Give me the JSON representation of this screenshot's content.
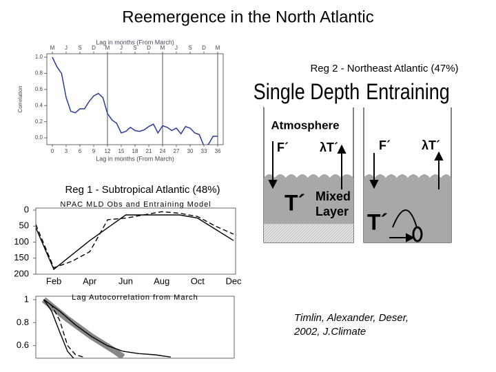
{
  "title": "Reemergence in the North Atlantic",
  "reg2": "Reg 2 - Northeast Atlantic (47%)",
  "reg1": "Reg 1 - Subtropical Atlantic (48%)",
  "citation": [
    "Timlin, Alexander, Deser,",
    "2002, J.Climate"
  ],
  "diagram": {
    "left_title": "Single Depth",
    "right_title": "Entraining",
    "atmosphere": "Atmosphere",
    "forcing": "F´",
    "damping": "λT´",
    "forcing_right": "F´",
    "damping_right": "λT´",
    "temp": "T´",
    "mixed_layer": [
      "Mixed",
      "Layer"
    ],
    "temp_right": "T´"
  },
  "chart_data": [
    {
      "type": "line",
      "title": "Lag in months (From March)",
      "xlabel": "Lag in months (From March)",
      "ylabel": "Correlation",
      "top_labels": [
        "M",
        "J",
        "S",
        "D",
        "M",
        "J",
        "S",
        "D",
        "M",
        "J",
        "S",
        "D",
        "M"
      ],
      "x": [
        0,
        1,
        2,
        3,
        4,
        5,
        6,
        7,
        8,
        9,
        10,
        11,
        12,
        13,
        14,
        15,
        16,
        17,
        18,
        19,
        20,
        21,
        22,
        23,
        24,
        25,
        26,
        27,
        28,
        29,
        30,
        31,
        32,
        33,
        34,
        35,
        36
      ],
      "series": [
        {
          "color": "#2b3a9c",
          "values": [
            1.0,
            0.88,
            0.8,
            0.5,
            0.33,
            0.31,
            0.36,
            0.36,
            0.45,
            0.52,
            0.55,
            0.5,
            0.3,
            0.22,
            0.18,
            0.06,
            0.08,
            0.13,
            0.09,
            0.08,
            0.1,
            0.14,
            0.17,
            0.06,
            0.15,
            0.13,
            0.09,
            0.12,
            0.05,
            0.14,
            0.12,
            0.06,
            0.04,
            -0.1,
            -0.08,
            0.02,
            0.02
          ]
        }
      ],
      "xlim": [
        -1.2,
        37.2
      ],
      "xticks": [
        0,
        3,
        6,
        9,
        12,
        15,
        18,
        21,
        24,
        27,
        30,
        33,
        36
      ],
      "ylim": [
        -0.085,
        1.043
      ],
      "yticks": [
        {
          "value": 0,
          "label": "0.0"
        },
        0.2,
        0.4,
        0.6,
        0.8,
        {
          "value": 1,
          "label": "1.0"
        }
      ],
      "vlines": [
        12,
        24,
        36
      ]
    },
    {
      "type": "line",
      "title": "NPAC MLD Obs and Entraining Model",
      "categories": [
        null,
        "Feb",
        null,
        "Apr",
        null,
        "Jun",
        null,
        "Aug",
        null,
        "Oct",
        null,
        "Dec"
      ],
      "series": [
        {
          "color": "#000000",
          "dash": false,
          "values": [
            55,
            185,
            140,
            95,
            55,
            15,
            15,
            15,
            15,
            25,
            60,
            95
          ]
        },
        {
          "color": "#000000",
          "dash": true,
          "values": [
            45,
            180,
            160,
            130,
            30,
            25,
            15,
            5,
            10,
            20,
            50,
            75
          ]
        }
      ],
      "ylim": [
        0,
        200
      ],
      "yticks": [
        0,
        50,
        100,
        150,
        200
      ],
      "inverted": true
    },
    {
      "type": "line",
      "title": "Lag Autocorrelation from March",
      "series": [
        {
          "color": "#888888",
          "style": "band",
          "x": [
            0,
            3,
            6,
            9,
            10
          ],
          "values": [
            1,
            0.83,
            0.68,
            0.55,
            0.5
          ]
        },
        {
          "color": "#000000",
          "dash": false,
          "x": [
            0,
            1,
            2,
            3,
            4
          ],
          "values": [
            1,
            0.9,
            0.72,
            0.55,
            0.47
          ]
        },
        {
          "color": "#000000",
          "dash": true,
          "x": [
            0,
            1,
            2,
            3,
            4,
            5
          ],
          "values": [
            1,
            0.95,
            0.82,
            0.6,
            0.52,
            0.5
          ]
        },
        {
          "color": "#000000",
          "dash": false,
          "x": [
            0,
            2,
            4,
            6,
            8,
            10,
            12,
            14,
            16
          ],
          "values": [
            1,
            0.9,
            0.78,
            0.68,
            0.6,
            0.55,
            0.53,
            0.52,
            0.5
          ]
        }
      ],
      "xlim": [
        -1,
        24
      ],
      "ylim": [
        0.49,
        1.03
      ],
      "yticks": [
        0.6,
        0.8,
        1
      ]
    }
  ]
}
